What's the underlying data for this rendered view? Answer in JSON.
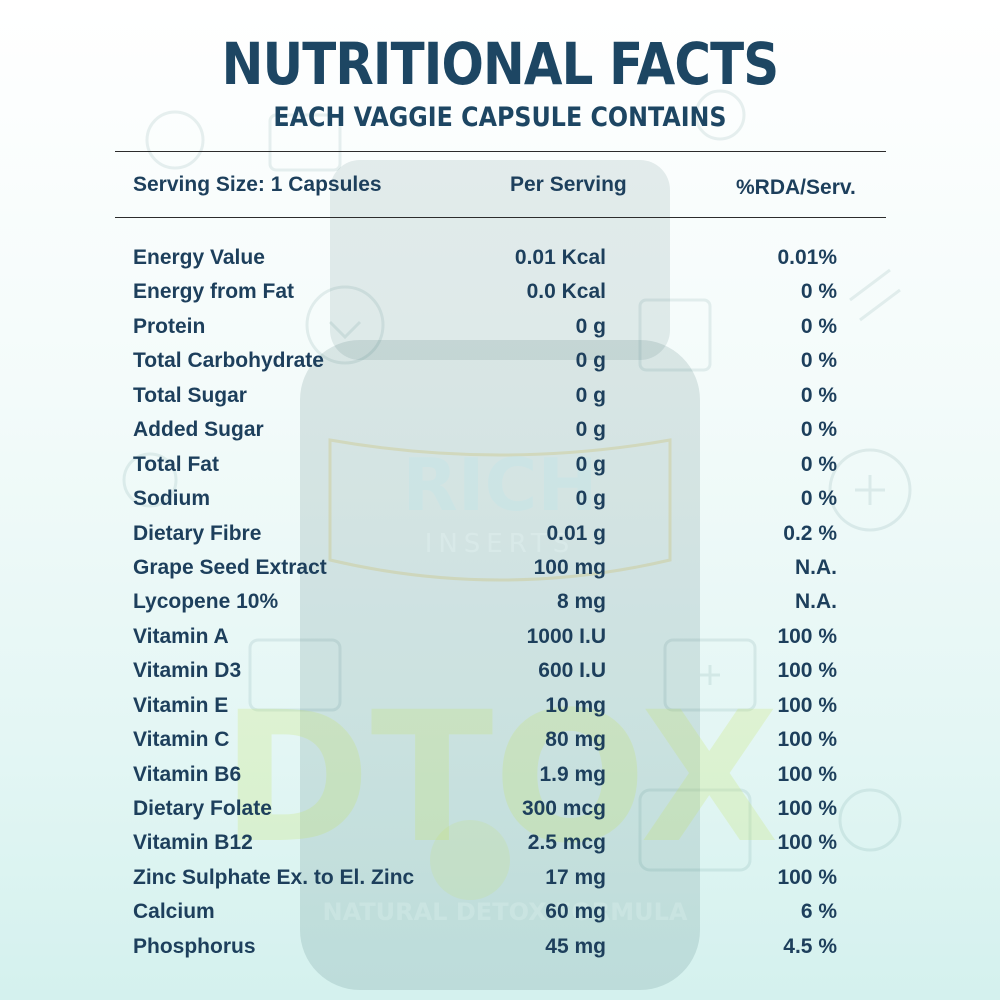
{
  "header": {
    "title": "NUTRITIONAL FACTS",
    "subtitle": "EACH VAGGIE CAPSULE CONTAINS"
  },
  "table": {
    "columns": [
      "Serving Size: 1 Capsules",
      "Per Serving",
      "%RDA/Serv."
    ],
    "rows": [
      {
        "name": "Energy Value",
        "per": "0.01 Kcal",
        "rda": "0.01%"
      },
      {
        "name": "Energy from Fat",
        "per": "0.0 Kcal",
        "rda": "0 %"
      },
      {
        "name": "Protein",
        "per": "0 g",
        "rda": "0 %"
      },
      {
        "name": "Total Carbohydrate",
        "per": "0 g",
        "rda": "0 %"
      },
      {
        "name": "Total Sugar",
        "per": "0 g",
        "rda": "0 %"
      },
      {
        "name": "Added Sugar",
        "per": "0 g",
        "rda": "0 %"
      },
      {
        "name": "Total Fat",
        "per": "0 g",
        "rda": "0 %"
      },
      {
        "name": "Sodium",
        "per": "0 g",
        "rda": "0 %"
      },
      {
        "name": "Dietary Fibre",
        "per": "0.01 g",
        "rda": "0.2 %"
      },
      {
        "name": "Grape Seed Extract",
        "per": "100 mg",
        "rda": "N.A."
      },
      {
        "name": "Lycopene 10%",
        "per": "8 mg",
        "rda": "N.A."
      },
      {
        "name": "Vitamin A",
        "per": "1000 I.U",
        "rda": "100 %"
      },
      {
        "name": "Vitamin D3",
        "per": "600 I.U",
        "rda": "100 %"
      },
      {
        "name": "Vitamin E",
        "per": "10 mg",
        "rda": "100 %"
      },
      {
        "name": "Vitamin C",
        "per": "80 mg",
        "rda": "100 %"
      },
      {
        "name": "Vitamin B6",
        "per": "1.9 mg",
        "rda": "100 %"
      },
      {
        "name": "Dietary Folate",
        "per": "300 mcg",
        "rda": "100 %"
      },
      {
        "name": "Vitamin B12",
        "per": "2.5 mcg",
        "rda": "100 %"
      },
      {
        "name": "Zinc Sulphate Ex. to El. Zinc",
        "per": "17 mg",
        "rda": "100 %"
      },
      {
        "name": "Calcium",
        "per": "60 mg",
        "rda": "6 %"
      },
      {
        "name": "Phosphorus",
        "per": "45 mg",
        "rda": "4.5 %"
      }
    ]
  },
  "background": {
    "brand_text": "RICH",
    "brand_sub": "INSERTS",
    "product_text": "DTOX",
    "product_tagline": "NATURAL DETOX FORMULA"
  },
  "colors": {
    "text": "#1d3f5c",
    "title": "#1d4663",
    "background_bottom": "#d4f1ee"
  }
}
